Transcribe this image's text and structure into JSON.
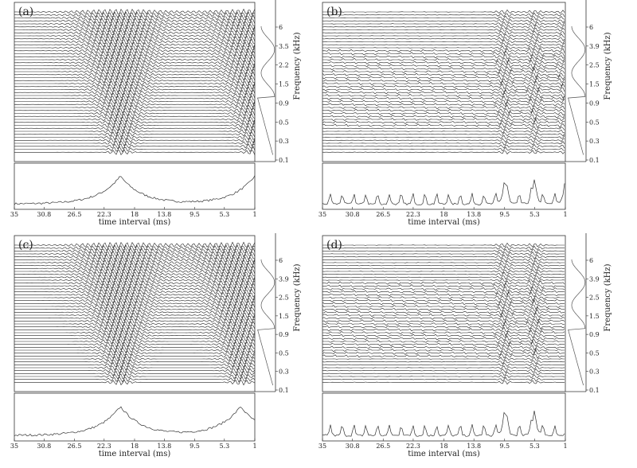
{
  "chart_data": [
    {
      "panel_label": "(a)",
      "type": "line",
      "xlabel": "time interval (ms)",
      "ylabel": "Frequency (kHz)",
      "x_ticks": [
        "35",
        "30.8",
        "26.5",
        "22.3",
        "18",
        "13.8",
        "9.5",
        "5.3",
        "1"
      ],
      "y_ticks": [
        "6",
        "3.5",
        "2.2",
        "1.5",
        "0.9",
        "0.5",
        "0.3",
        "0.1"
      ],
      "peaks_ms": [
        20,
        1
      ]
    },
    {
      "panel_label": "(b)",
      "type": "line",
      "xlabel": "time interval (ms)",
      "ylabel": "Frequency (kHz)",
      "x_ticks": [
        "35",
        "30.8",
        "26.5",
        "22.3",
        "18",
        "13.8",
        "9.5",
        "5.3",
        "1"
      ],
      "y_ticks": [
        "6",
        "3.9",
        "2.5",
        "1.5",
        "0.9",
        "0.5",
        "0.3",
        "0.1"
      ],
      "peaks_ms": [
        5.3,
        9.5,
        1
      ]
    },
    {
      "panel_label": "(c)",
      "type": "line",
      "xlabel": "time interval (ms)",
      "ylabel": "Frequency (kHz)",
      "x_ticks": [
        "35",
        "30.8",
        "26.5",
        "22.3",
        "18",
        "13.8",
        "9.5",
        "5.3",
        "1"
      ],
      "y_ticks": [
        "6",
        "3.9",
        "2.5",
        "1.5",
        "0.9",
        "0.5",
        "0.3",
        "0.1"
      ],
      "peaks_ms": [
        20,
        3
      ]
    },
    {
      "panel_label": "(d)",
      "type": "line",
      "xlabel": "time interval (ms)",
      "ylabel": "Frequency (kHz)",
      "x_ticks": [
        "35",
        "30.8",
        "26.5",
        "22.3",
        "18",
        "13.8",
        "9.5",
        "5.3",
        "1"
      ],
      "y_ticks": [
        "6",
        "3.9",
        "2.5",
        "1.5",
        "0.9",
        "0.5",
        "0.3",
        "0.1"
      ],
      "peaks_ms": [
        5.3,
        9.5
      ]
    }
  ]
}
